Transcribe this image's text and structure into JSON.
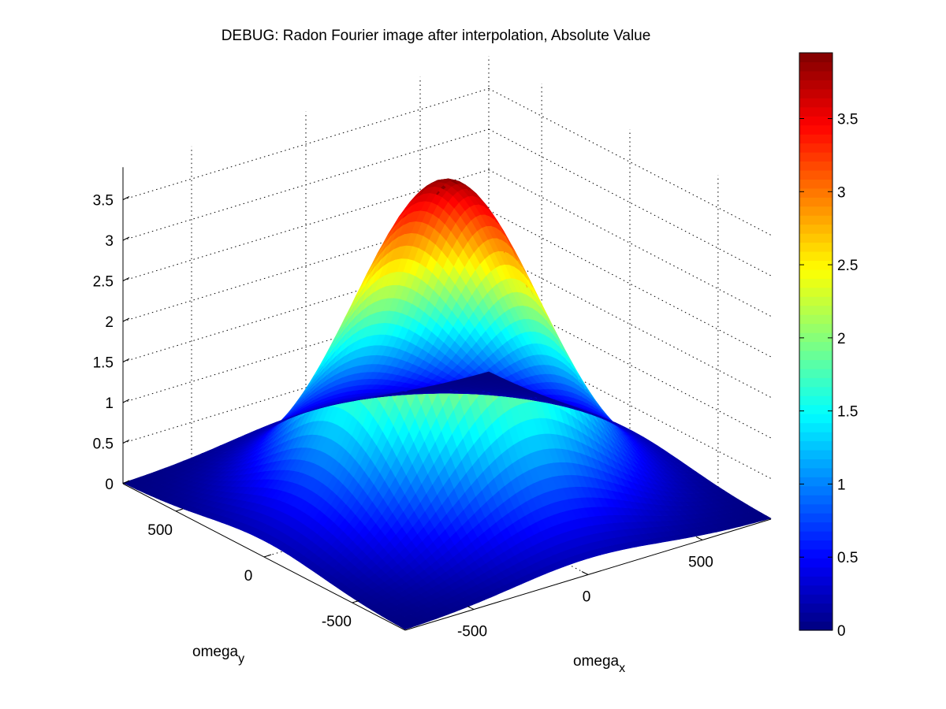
{
  "chart_data": {
    "type": "surface",
    "title": "DEBUG: Radon Fourier image after interpolation, Absolute Value",
    "xlabel": {
      "base": "omega",
      "sub": "x"
    },
    "ylabel": {
      "base": "omega",
      "sub": "y"
    },
    "zlabel": "",
    "x_ticks": [
      "-500",
      "0",
      "500"
    ],
    "y_ticks": [
      "-500",
      "0",
      "500"
    ],
    "z_ticks": [
      "0",
      "0.5",
      "1",
      "1.5",
      "2",
      "2.5",
      "3",
      "3.5"
    ],
    "x_range": [
      -800,
      800
    ],
    "y_range": [
      -800,
      800
    ],
    "z_range": [
      0,
      4
    ],
    "grid": true,
    "colormap": "jet",
    "surface": {
      "function": "gaussian-like bell",
      "peak_value": 3.95,
      "corner_value": 0.2,
      "center": [
        0,
        0
      ]
    },
    "colorbar": {
      "range": [
        0,
        3.95
      ],
      "ticks": [
        "0",
        "0.5",
        "1",
        "1.5",
        "2",
        "2.5",
        "3",
        "3.5"
      ]
    }
  }
}
